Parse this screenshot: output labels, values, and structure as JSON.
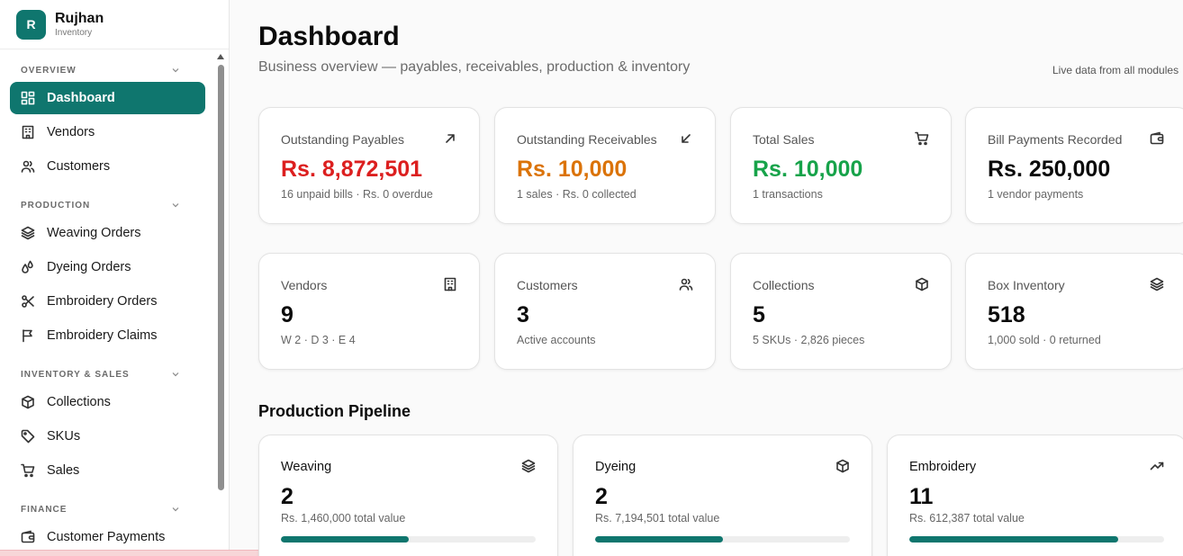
{
  "brand": {
    "initial": "R",
    "name": "Rujhan",
    "subtitle": "Inventory"
  },
  "sidebar": {
    "sections": [
      {
        "title": "OVERVIEW",
        "items": [
          {
            "label": "Dashboard",
            "icon": "dashboard-icon",
            "active": true
          },
          {
            "label": "Vendors",
            "icon": "building-icon"
          },
          {
            "label": "Customers",
            "icon": "users-icon"
          }
        ]
      },
      {
        "title": "PRODUCTION",
        "items": [
          {
            "label": "Weaving Orders",
            "icon": "layers-icon"
          },
          {
            "label": "Dyeing Orders",
            "icon": "droplets-icon"
          },
          {
            "label": "Embroidery Orders",
            "icon": "scissors-icon"
          },
          {
            "label": "Embroidery Claims",
            "icon": "flag-icon"
          }
        ]
      },
      {
        "title": "INVENTORY & SALES",
        "items": [
          {
            "label": "Collections",
            "icon": "package-icon"
          },
          {
            "label": "SKUs",
            "icon": "tag-icon"
          },
          {
            "label": "Sales",
            "icon": "cart-icon"
          }
        ]
      },
      {
        "title": "FINANCE",
        "items": [
          {
            "label": "Customer Payments",
            "icon": "wallet-icon"
          }
        ]
      }
    ]
  },
  "header": {
    "title": "Dashboard",
    "subtitle": "Business overview — payables, receivables, production & inventory",
    "live_note": "Live data from all modules"
  },
  "kpis": [
    {
      "label": "Outstanding Payables",
      "value": "Rs. 8,872,501",
      "sub": "16 unpaid bills · Rs. 0 overdue",
      "icon": "arrow-up-right-icon",
      "color": "#dc1f1f"
    },
    {
      "label": "Outstanding Receivables",
      "value": "Rs. 10,000",
      "sub": "1 sales · Rs. 0 collected",
      "icon": "arrow-down-left-icon",
      "color": "#db7309"
    },
    {
      "label": "Total Sales",
      "value": "Rs. 10,000",
      "sub": "1 transactions",
      "icon": "cart-icon",
      "color": "#17a34a"
    },
    {
      "label": "Bill Payments Recorded",
      "value": "Rs. 250,000",
      "sub": "1 vendor payments",
      "icon": "wallet-icon",
      "color": "#0b0b0b"
    }
  ],
  "stats": [
    {
      "label": "Vendors",
      "value": "9",
      "sub": "W 2 · D 3 · E 4",
      "icon": "building-icon"
    },
    {
      "label": "Customers",
      "value": "3",
      "sub": "Active accounts",
      "icon": "users-icon"
    },
    {
      "label": "Collections",
      "value": "5",
      "sub": "5 SKUs · 2,826 pieces",
      "icon": "package-icon"
    },
    {
      "label": "Box Inventory",
      "value": "518",
      "sub": "1,000 sold · 0 returned",
      "icon": "layers-icon"
    }
  ],
  "pipeline": {
    "title": "Production Pipeline",
    "stages": [
      {
        "label": "Weaving",
        "value": "2",
        "sub": "Rs. 1,460,000 total value",
        "icon": "layers-icon",
        "progress": 0.5
      },
      {
        "label": "Dyeing",
        "value": "2",
        "sub": "Rs. 7,194,501 total value",
        "icon": "package-icon",
        "progress": 0.5
      },
      {
        "label": "Embroidery",
        "value": "11",
        "sub": "Rs. 612,387 total value",
        "icon": "trending-up-icon",
        "progress": 0.82
      }
    ]
  },
  "theme": {
    "accent": "#0f766e"
  }
}
